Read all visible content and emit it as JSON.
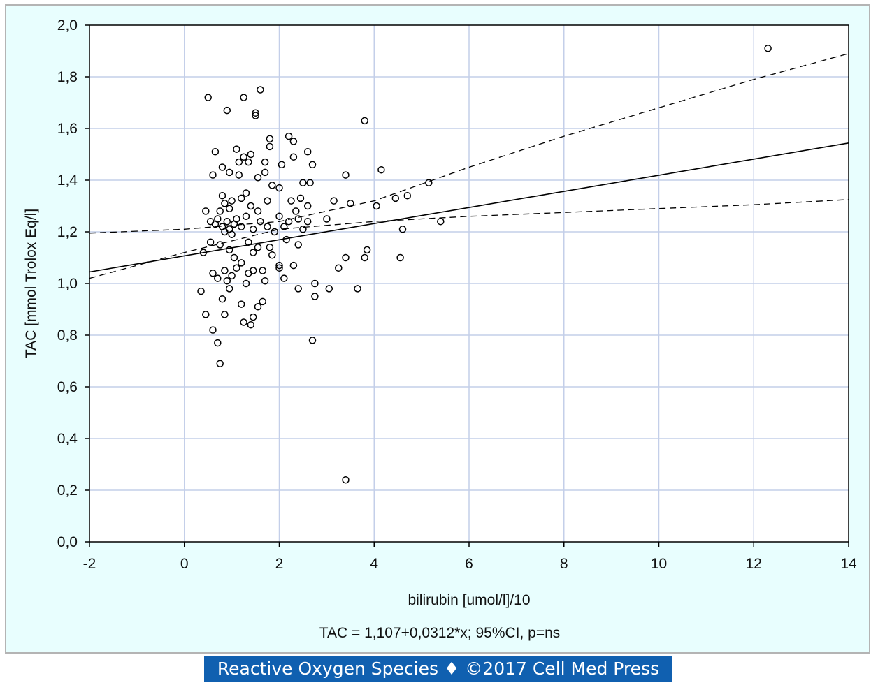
{
  "chart_data": {
    "type": "scatter",
    "title": "",
    "xlabel": "bilirubin [umol/l]/10",
    "ylabel": "TAC [mmol Trolox Eq/l]",
    "subtitle": "TAC = 1,107+0,0312*x; 95%CI, p=ns",
    "xlim": [
      -2,
      14
    ],
    "ylim": [
      0,
      2
    ],
    "x_ticks": [
      "-2",
      "0",
      "2",
      "4",
      "6",
      "8",
      "10",
      "12",
      "14"
    ],
    "y_ticks": [
      "0,0",
      "0,2",
      "0,4",
      "0,6",
      "0,8",
      "1,0",
      "1,2",
      "1,4",
      "1,6",
      "1,8",
      "2,0"
    ],
    "grid": true,
    "regression": {
      "intercept": 1.107,
      "slope": 0.0312,
      "line_color": "#000000"
    },
    "confidence_band": {
      "upper": [
        [
          -2,
          1.195
        ],
        [
          0,
          1.21
        ],
        [
          2,
          1.24
        ],
        [
          4,
          1.32
        ],
        [
          6,
          1.45
        ],
        [
          8,
          1.57
        ],
        [
          10,
          1.68
        ],
        [
          12,
          1.79
        ],
        [
          14,
          1.89
        ]
      ],
      "lower": [
        [
          -2,
          1.02
        ],
        [
          0,
          1.12
        ],
        [
          2,
          1.21
        ],
        [
          4,
          1.24
        ],
        [
          6,
          1.26
        ],
        [
          8,
          1.275
        ],
        [
          10,
          1.29
        ],
        [
          12,
          1.305
        ],
        [
          14,
          1.325
        ]
      ]
    },
    "points": [
      [
        0.5,
        1.72
      ],
      [
        0.9,
        1.67
      ],
      [
        1.25,
        1.72
      ],
      [
        1.5,
        1.66
      ],
      [
        1.6,
        1.75
      ],
      [
        1.5,
        1.65
      ],
      [
        0.65,
        1.51
      ],
      [
        1.1,
        1.52
      ],
      [
        1.25,
        1.49
      ],
      [
        1.4,
        1.5
      ],
      [
        1.8,
        1.56
      ],
      [
        1.8,
        1.53
      ],
      [
        2.2,
        1.57
      ],
      [
        2.3,
        1.55
      ],
      [
        2.6,
        1.51
      ],
      [
        2.3,
        1.49
      ],
      [
        0.6,
        1.42
      ],
      [
        0.8,
        1.45
      ],
      [
        0.95,
        1.43
      ],
      [
        1.15,
        1.47
      ],
      [
        1.35,
        1.47
      ],
      [
        1.7,
        1.47
      ],
      [
        2.05,
        1.46
      ],
      [
        2.7,
        1.46
      ],
      [
        1.15,
        1.42
      ],
      [
        1.55,
        1.41
      ],
      [
        1.7,
        1.43
      ],
      [
        3.4,
        1.42
      ],
      [
        0.8,
        1.34
      ],
      [
        0.85,
        1.31
      ],
      [
        0.75,
        1.28
      ],
      [
        0.95,
        1.29
      ],
      [
        1.0,
        1.32
      ],
      [
        1.2,
        1.33
      ],
      [
        1.3,
        1.35
      ],
      [
        1.4,
        1.3
      ],
      [
        1.55,
        1.28
      ],
      [
        1.75,
        1.32
      ],
      [
        1.85,
        1.38
      ],
      [
        2.0,
        1.37
      ],
      [
        2.25,
        1.32
      ],
      [
        2.45,
        1.33
      ],
      [
        2.5,
        1.39
      ],
      [
        2.65,
        1.39
      ],
      [
        3.15,
        1.32
      ],
      [
        3.5,
        1.31
      ],
      [
        4.05,
        1.3
      ],
      [
        4.45,
        1.33
      ],
      [
        4.7,
        1.34
      ],
      [
        5.15,
        1.39
      ],
      [
        0.45,
        1.28
      ],
      [
        0.55,
        1.24
      ],
      [
        0.65,
        1.23
      ],
      [
        0.7,
        1.25
      ],
      [
        0.8,
        1.22
      ],
      [
        0.85,
        1.2
      ],
      [
        0.9,
        1.24
      ],
      [
        0.95,
        1.21
      ],
      [
        1.0,
        1.19
      ],
      [
        1.05,
        1.23
      ],
      [
        1.1,
        1.25
      ],
      [
        1.2,
        1.22
      ],
      [
        1.3,
        1.26
      ],
      [
        1.45,
        1.21
      ],
      [
        1.6,
        1.24
      ],
      [
        1.75,
        1.22
      ],
      [
        1.9,
        1.2
      ],
      [
        2.0,
        1.26
      ],
      [
        2.1,
        1.22
      ],
      [
        2.2,
        1.24
      ],
      [
        2.35,
        1.28
      ],
      [
        2.4,
        1.25
      ],
      [
        2.5,
        1.21
      ],
      [
        2.6,
        1.3
      ],
      [
        2.6,
        1.24
      ],
      [
        3.0,
        1.25
      ],
      [
        4.6,
        1.21
      ],
      [
        5.4,
        1.24
      ],
      [
        0.4,
        1.12
      ],
      [
        0.55,
        1.16
      ],
      [
        0.75,
        1.15
      ],
      [
        0.95,
        1.13
      ],
      [
        1.05,
        1.1
      ],
      [
        1.2,
        1.08
      ],
      [
        1.35,
        1.16
      ],
      [
        1.45,
        1.12
      ],
      [
        1.55,
        1.14
      ],
      [
        1.8,
        1.14
      ],
      [
        1.85,
        1.11
      ],
      [
        2.15,
        1.17
      ],
      [
        2.4,
        1.15
      ],
      [
        0.6,
        1.04
      ],
      [
        0.7,
        1.02
      ],
      [
        0.85,
        1.05
      ],
      [
        0.9,
        1.01
      ],
      [
        1.0,
        1.03
      ],
      [
        1.1,
        1.06
      ],
      [
        1.3,
        1.0
      ],
      [
        1.35,
        1.04
      ],
      [
        1.45,
        1.05
      ],
      [
        1.65,
        1.05
      ],
      [
        1.7,
        1.01
      ],
      [
        2.0,
        1.07
      ],
      [
        2.0,
        1.06
      ],
      [
        2.1,
        1.02
      ],
      [
        2.3,
        1.07
      ],
      [
        3.25,
        1.06
      ],
      [
        3.4,
        1.1
      ],
      [
        3.85,
        1.13
      ],
      [
        3.8,
        1.1
      ],
      [
        4.55,
        1.1
      ],
      [
        0.35,
        0.97
      ],
      [
        0.95,
        0.98
      ],
      [
        0.8,
        0.94
      ],
      [
        1.2,
        0.92
      ],
      [
        1.55,
        0.91
      ],
      [
        1.65,
        0.93
      ],
      [
        2.4,
        0.98
      ],
      [
        2.75,
        1.0
      ],
      [
        2.75,
        0.95
      ],
      [
        3.05,
        0.98
      ],
      [
        3.65,
        0.98
      ],
      [
        0.45,
        0.88
      ],
      [
        0.85,
        0.88
      ],
      [
        1.25,
        0.85
      ],
      [
        1.4,
        0.84
      ],
      [
        1.45,
        0.87
      ],
      [
        0.6,
        0.82
      ],
      [
        0.7,
        0.77
      ],
      [
        0.75,
        0.69
      ],
      [
        2.7,
        0.78
      ],
      [
        3.4,
        0.24
      ],
      [
        3.8,
        1.63
      ],
      [
        4.15,
        1.44
      ],
      [
        12.3,
        1.91
      ]
    ]
  },
  "footer": {
    "caption": "Reactive Oxygen Species ♦ ©2017 Cell Med Press"
  },
  "colors": {
    "panel_background": "#e8fefe",
    "plot_background": "#ffffff",
    "grid": "#c4cfe9",
    "caption_background": "#1060b0"
  }
}
